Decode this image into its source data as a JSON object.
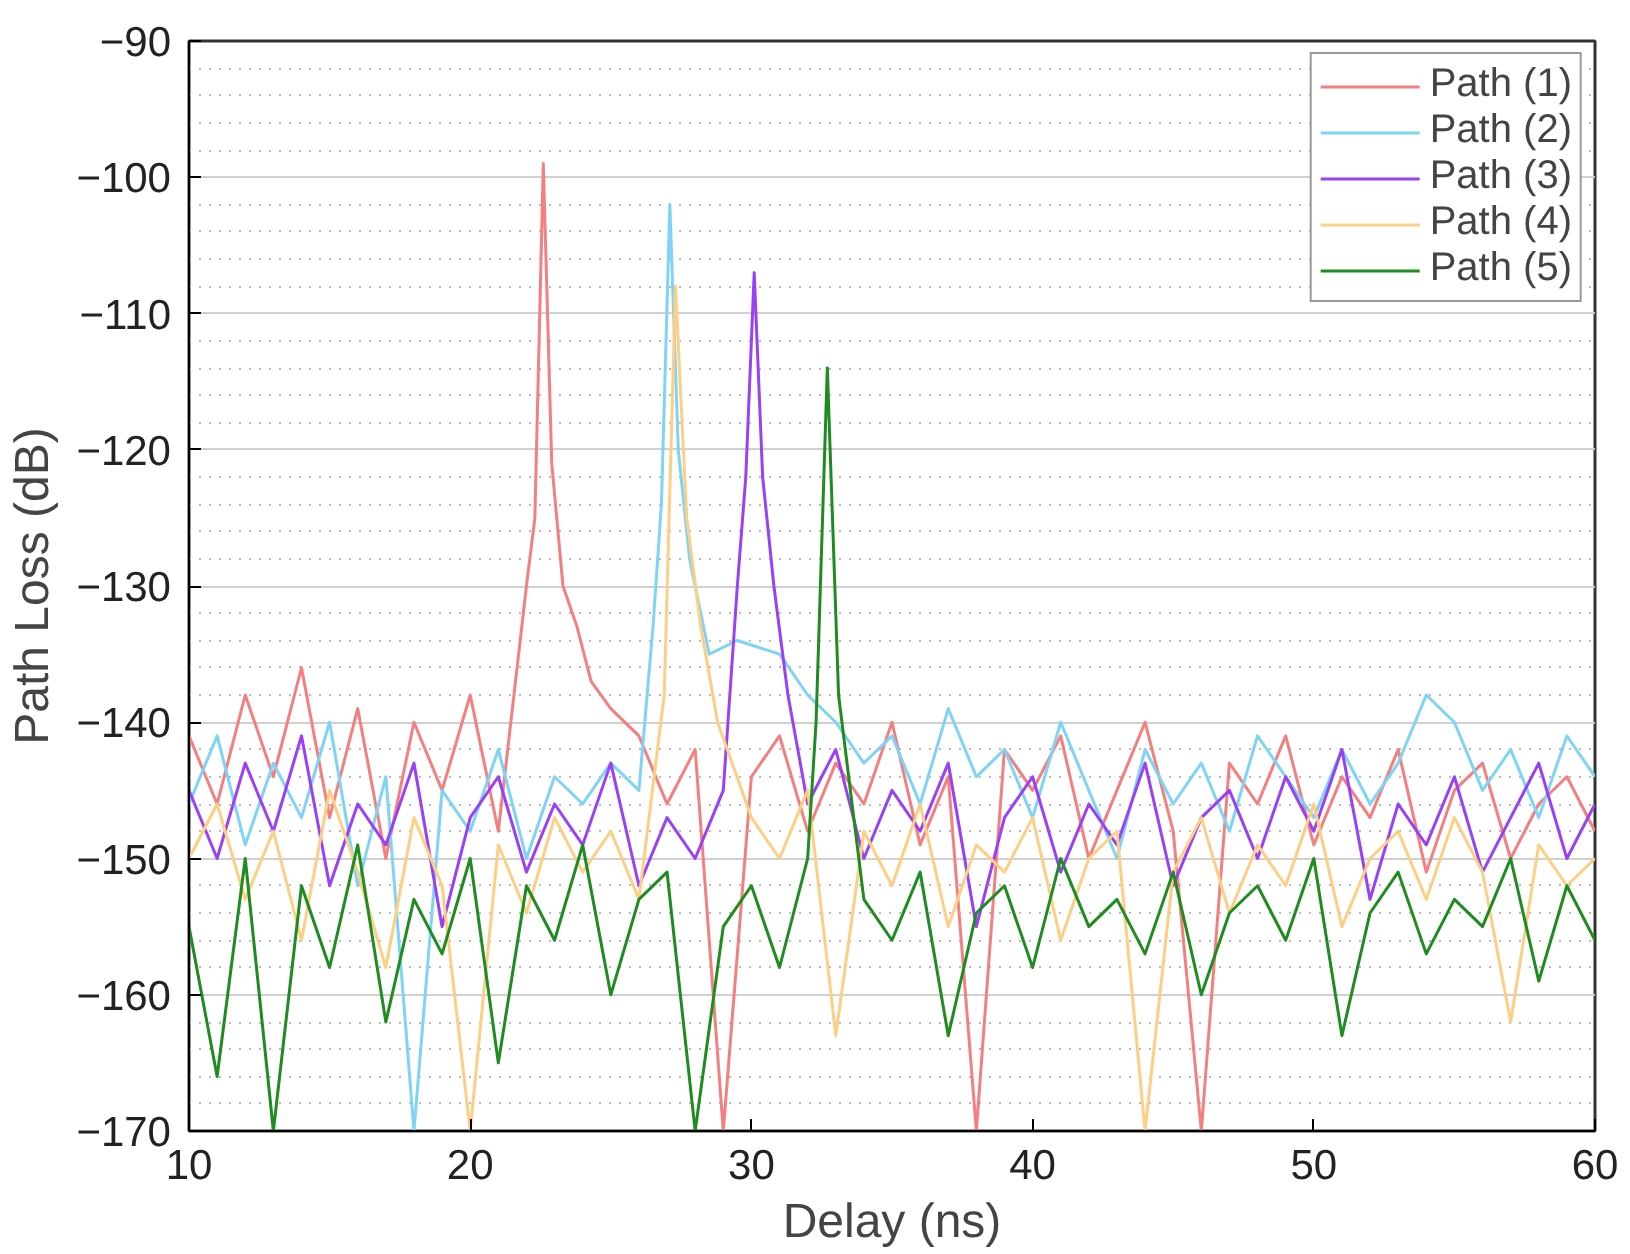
{
  "chart_data": {
    "type": "line",
    "xlabel": "Delay (ns)",
    "ylabel": "Path Loss (dB)",
    "xlim": [
      10,
      60
    ],
    "ylim": [
      -170,
      -90
    ],
    "xticks": [
      10,
      20,
      30,
      40,
      50,
      60
    ],
    "yticks": [
      -170,
      -160,
      -150,
      -140,
      -130,
      -120,
      -110,
      -100,
      -90
    ],
    "grid": true,
    "legend": "top right",
    "line_style": "solid",
    "marker": "none",
    "series": [
      {
        "name": "Path (1)",
        "color": "#f47f7f",
        "x": [
          10,
          11,
          12,
          13,
          14,
          15,
          16,
          17,
          18,
          19,
          20,
          21,
          22,
          22.3,
          22.6,
          22.9,
          23.3,
          23.8,
          24.3,
          25,
          26,
          27,
          28,
          29,
          30,
          31,
          32,
          33,
          34,
          35,
          36,
          37,
          38,
          39,
          40,
          41,
          42,
          43,
          44,
          45,
          46,
          47,
          48,
          49,
          50,
          51,
          52,
          53,
          54,
          55,
          56,
          57,
          58,
          59,
          60
        ],
        "values": [
          -141,
          -146,
          -138,
          -144,
          -136,
          -147,
          -139,
          -150,
          -140,
          -145,
          -138,
          -148,
          -130,
          -125,
          -99,
          -121,
          -130,
          -133,
          -137,
          -139,
          -141,
          -146,
          -142,
          -170,
          -144,
          -141,
          -148,
          -143,
          -146,
          -140,
          -149,
          -144,
          -170,
          -142,
          -145,
          -141,
          -150,
          -145,
          -140,
          -148,
          -170,
          -143,
          -146,
          -141,
          -149,
          -144,
          -147,
          -142,
          -151,
          -145,
          -143,
          -150,
          -146,
          -144,
          -148
        ]
      },
      {
        "name": "Path (2)",
        "color": "#7fd3f7",
        "x": [
          10,
          11,
          12,
          13,
          14,
          15,
          16,
          17,
          18,
          19,
          20,
          21,
          22,
          23,
          24,
          25,
          26,
          26.5,
          26.8,
          27.1,
          27.4,
          27.8,
          28.5,
          29.5,
          31,
          32,
          33,
          34,
          35,
          36,
          37,
          38,
          39,
          40,
          41,
          42,
          43,
          44,
          45,
          46,
          47,
          48,
          49,
          50,
          51,
          52,
          53,
          54,
          55,
          56,
          57,
          58,
          59,
          60
        ],
        "values": [
          -146,
          -141,
          -149,
          -143,
          -147,
          -140,
          -152,
          -144,
          -170,
          -145,
          -148,
          -142,
          -150,
          -144,
          -146,
          -143,
          -145,
          -133,
          -124,
          -102,
          -120,
          -128,
          -135,
          -134,
          -135,
          -138,
          -140,
          -143,
          -141,
          -146,
          -139,
          -144,
          -142,
          -147,
          -140,
          -145,
          -150,
          -142,
          -146,
          -143,
          -148,
          -141,
          -144,
          -147,
          -142,
          -146,
          -143,
          -138,
          -140,
          -145,
          -142,
          -147,
          -141,
          -144
        ]
      },
      {
        "name": "Path (3)",
        "color": "#9a40f5",
        "x": [
          10,
          11,
          12,
          13,
          14,
          15,
          16,
          17,
          18,
          19,
          20,
          21,
          22,
          23,
          24,
          25,
          26,
          27,
          28,
          29,
          29.5,
          29.8,
          30.1,
          30.4,
          30.8,
          31.3,
          32,
          33,
          34,
          35,
          36,
          37,
          38,
          39,
          40,
          41,
          42,
          43,
          44,
          45,
          46,
          47,
          48,
          49,
          50,
          51,
          52,
          53,
          54,
          55,
          56,
          57,
          58,
          59,
          60
        ],
        "values": [
          -145,
          -150,
          -143,
          -148,
          -141,
          -152,
          -146,
          -149,
          -143,
          -155,
          -147,
          -144,
          -151,
          -146,
          -149,
          -143,
          -152,
          -147,
          -150,
          -145,
          -130,
          -122,
          -107,
          -122,
          -130,
          -138,
          -146,
          -142,
          -150,
          -145,
          -148,
          -143,
          -155,
          -147,
          -144,
          -151,
          -146,
          -149,
          -143,
          -152,
          -147,
          -145,
          -150,
          -144,
          -148,
          -142,
          -153,
          -146,
          -149,
          -144,
          -151,
          -147,
          -143,
          -150,
          -146
        ]
      },
      {
        "name": "Path (4)",
        "color": "#fdcf84",
        "x": [
          10,
          11,
          12,
          13,
          14,
          15,
          16,
          17,
          18,
          19,
          20,
          21,
          22,
          23,
          24,
          25,
          26,
          26.9,
          27.3,
          27.7,
          28.2,
          28.8,
          30,
          31,
          32,
          33,
          34,
          35,
          36,
          37,
          38,
          39,
          40,
          41,
          42,
          43,
          44,
          45,
          46,
          47,
          48,
          49,
          50,
          51,
          52,
          53,
          54,
          55,
          56,
          57,
          58,
          59,
          60
        ],
        "values": [
          -150,
          -146,
          -153,
          -148,
          -156,
          -145,
          -151,
          -158,
          -147,
          -152,
          -170,
          -149,
          -154,
          -147,
          -151,
          -148,
          -153,
          -138,
          -108,
          -125,
          -133,
          -140,
          -147,
          -150,
          -145,
          -163,
          -148,
          -152,
          -146,
          -155,
          -149,
          -151,
          -147,
          -156,
          -150,
          -148,
          -170,
          -151,
          -147,
          -154,
          -149,
          -152,
          -146,
          -155,
          -150,
          -148,
          -153,
          -147,
          -151,
          -162,
          -149,
          -152,
          -150
        ]
      },
      {
        "name": "Path (5)",
        "color": "#1e8c1e",
        "x": [
          10,
          11,
          12,
          13,
          14,
          15,
          16,
          17,
          18,
          19,
          20,
          21,
          22,
          23,
          24,
          25,
          26,
          27,
          28,
          29,
          30,
          31,
          32,
          32.3,
          32.7,
          33.1,
          34,
          35,
          36,
          37,
          38,
          39,
          40,
          41,
          42,
          43,
          44,
          45,
          46,
          47,
          48,
          49,
          50,
          51,
          52,
          53,
          54,
          55,
          56,
          57,
          58,
          59,
          60
        ],
        "values": [
          -155,
          -166,
          -150,
          -170,
          -152,
          -158,
          -149,
          -162,
          -153,
          -157,
          -150,
          -165,
          -152,
          -156,
          -149,
          -160,
          -153,
          -151,
          -170,
          -155,
          -152,
          -158,
          -150,
          -140,
          -114,
          -138,
          -153,
          -156,
          -151,
          -163,
          -154,
          -152,
          -158,
          -150,
          -155,
          -153,
          -157,
          -151,
          -160,
          -154,
          -152,
          -156,
          -150,
          -163,
          -154,
          -151,
          -157,
          -153,
          -155,
          -150,
          -159,
          -152,
          -156
        ]
      }
    ]
  }
}
